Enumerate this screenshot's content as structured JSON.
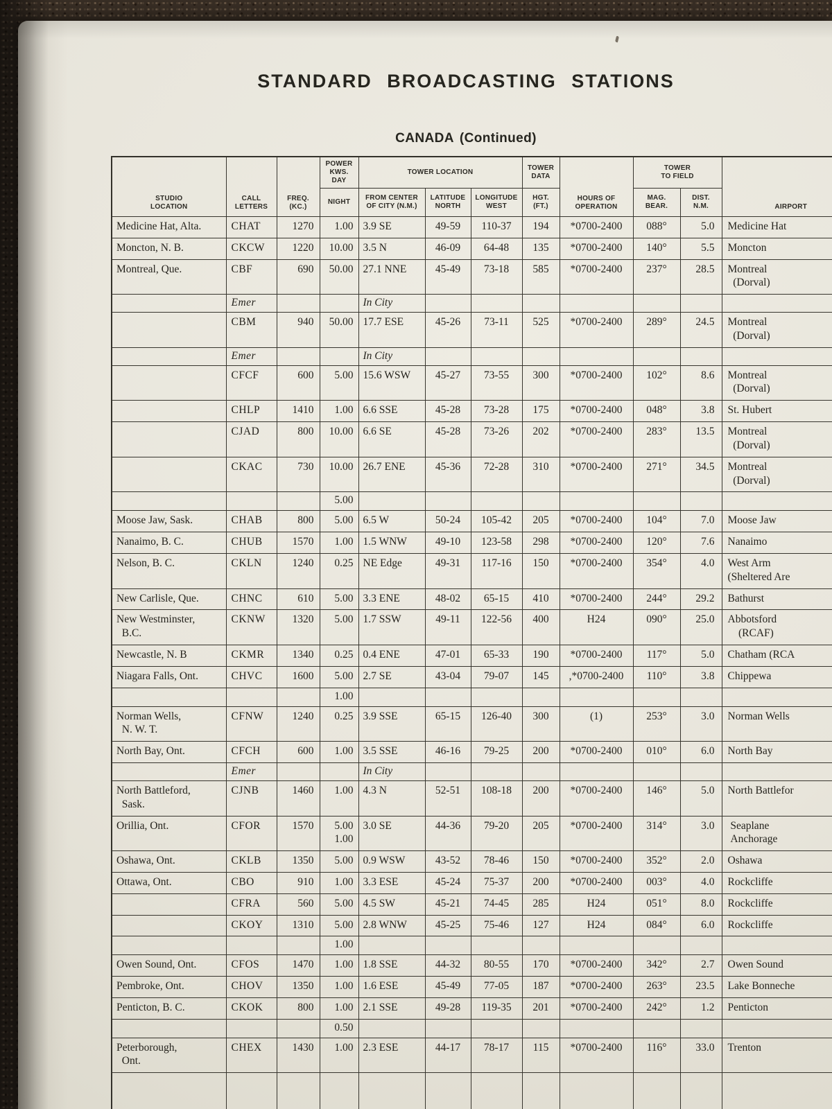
{
  "page": {
    "title": "STANDARD BROADCASTING STATIONS",
    "subtitle": "CANADA (Continued)"
  },
  "colors": {
    "paper": "#e9e6dc",
    "ink": "#25231d",
    "carpet": "#372d24"
  },
  "table": {
    "header": {
      "studio_location": "STUDIO\nLOCATION",
      "call_letters": "CALL\nLETTERS",
      "freq": "FREQ.\n(KC.)",
      "power_day": "POWER\nKWS.\nDAY",
      "night": "NIGHT",
      "tower_location": "TOWER LOCATION",
      "from_center": "FROM CENTER\nOF CITY (N.M.)",
      "latitude": "LATITUDE\nNORTH",
      "longitude": "LONGITUDE\nWEST",
      "tower_data": "TOWER\nDATA",
      "hgt": "HGT.\n(FT.)",
      "hours": "HOURS OF\nOPERATION",
      "tower_to_field": "TOWER\nTO FIELD",
      "mag_bear": "MAG.\nBEAR.",
      "dist": "DIST.\nN.M.",
      "airport": "AIRPORT"
    },
    "rows": [
      [
        "Medicine Hat, Alta.",
        "CHAT",
        "1270",
        "1.00",
        "3.9 SE",
        "49-59",
        "110-37",
        "194",
        "*0700-2400",
        "088°",
        "5.0",
        "Medicine Hat"
      ],
      [
        "Moncton, N. B.",
        "CKCW",
        "1220",
        "10.00",
        "3.5 N",
        "46-09",
        "64-48",
        "135",
        "*0700-2400",
        "140°",
        "5.5",
        "Moncton"
      ],
      [
        "Montreal, Que.",
        "CBF",
        "690",
        "50.00",
        "27.1 NNE",
        "45-49",
        "73-18",
        "585",
        "*0700-2400",
        "237°",
        "28.5",
        "Montreal\n  (Dorval)"
      ],
      [
        "",
        "Emer",
        "",
        "",
        "In City",
        "",
        "",
        "",
        "",
        "",
        "",
        ""
      ],
      [
        "",
        "CBM",
        "940",
        "50.00",
        "17.7 ESE",
        "45-26",
        "73-11",
        "525",
        "*0700-2400",
        "289°",
        "24.5",
        "Montreal\n  (Dorval)"
      ],
      [
        "",
        "Emer",
        "",
        "",
        "In City",
        "",
        "",
        "",
        "",
        "",
        "",
        ""
      ],
      [
        "",
        "CFCF",
        "600",
        "5.00",
        "15.6 WSW",
        "45-27",
        "73-55",
        "300",
        "*0700-2400",
        "102°",
        "8.6",
        "Montreal\n  (Dorval)"
      ],
      [
        "",
        "CHLP",
        "1410",
        "1.00",
        "6.6 SSE",
        "45-28",
        "73-28",
        "175",
        "*0700-2400",
        "048°",
        "3.8",
        "St. Hubert"
      ],
      [
        "",
        "CJAD",
        "800",
        "10.00",
        "6.6 SE",
        "45-28",
        "73-26",
        "202",
        "*0700-2400",
        "283°",
        "13.5",
        "Montreal\n  (Dorval)"
      ],
      [
        "",
        "CKAC",
        "730",
        "10.00",
        "26.7 ENE",
        "45-36",
        "72-28",
        "310",
        "*0700-2400",
        "271°",
        "34.5",
        "Montreal\n  (Dorval)"
      ],
      [
        "",
        "",
        "",
        "5.00",
        "",
        "",
        "",
        "",
        "",
        "",
        "",
        ""
      ],
      [
        "Moose Jaw, Sask.",
        "CHAB",
        "800",
        "5.00",
        "6.5 W",
        "50-24",
        "105-42",
        "205",
        "*0700-2400",
        "104°",
        "7.0",
        "Moose Jaw"
      ],
      [
        "Nanaimo, B. C.",
        "CHUB",
        "1570",
        "1.00",
        "1.5 WNW",
        "49-10",
        "123-58",
        "298",
        "*0700-2400",
        "120°",
        "7.6",
        "Nanaimo"
      ],
      [
        "Nelson, B. C.",
        "CKLN",
        "1240",
        "0.25",
        "NE Edge",
        "49-31",
        "117-16",
        "150",
        "*0700-2400",
        "354°",
        "4.0",
        "West Arm\n(Sheltered Are"
      ],
      [
        "New Carlisle, Que.",
        "CHNC",
        "610",
        "5.00",
        "3.3 ENE",
        "48-02",
        "65-15",
        "410",
        "*0700-2400",
        "244°",
        "29.2",
        "Bathurst"
      ],
      [
        "New Westminster,\n  B.C.",
        "CKNW",
        "1320",
        "5.00",
        "1.7 SSW",
        "49-11",
        "122-56",
        "400",
        "H24",
        "090°",
        "25.0",
        "Abbotsford\n    (RCAF)"
      ],
      [
        "Newcastle, N. B",
        "CKMR",
        "1340",
        "0.25",
        "0.4 ENE",
        "47-01",
        "65-33",
        "190",
        "*0700-2400",
        "117°",
        "5.0",
        "Chatham (RCA"
      ],
      [
        "Niagara Falls, Ont.",
        "CHVC",
        "1600",
        "5.00",
        "2.7 SE",
        "43-04",
        "79-07",
        "145",
        ",*0700-2400",
        "110°",
        "3.8",
        "Chippewa"
      ],
      [
        "",
        "",
        "",
        "1.00",
        "",
        "",
        "",
        "",
        "",
        "",
        "",
        ""
      ],
      [
        "Norman Wells,\n  N. W. T.",
        "CFNW",
        "1240",
        "0.25",
        "3.9 SSE",
        "65-15",
        "126-40",
        "300",
        "(1)",
        "253°",
        "3.0",
        "Norman Wells"
      ],
      [
        "North Bay, Ont.",
        "CFCH",
        "600",
        "1.00",
        "3.5 SSE",
        "46-16",
        "79-25",
        "200",
        "*0700-2400",
        "010°",
        "6.0",
        "North Bay"
      ],
      [
        "",
        "Emer",
        "",
        "",
        "In City",
        "",
        "",
        "",
        "",
        "",
        "",
        ""
      ],
      [
        "North Battleford,\n  Sask.",
        "CJNB",
        "1460",
        "1.00",
        "4.3 N",
        "52-51",
        "108-18",
        "200",
        "*0700-2400",
        "146°",
        "5.0",
        "North Battlefor"
      ],
      [
        "Orillia, Ont.",
        "CFOR",
        "1570",
        "5.00\n1.00",
        "3.0 SE",
        "44-36",
        "79-20",
        "205",
        "*0700-2400",
        "314°",
        "3.0",
        " Seaplane\n Anchorage"
      ],
      [
        "Oshawa, Ont.",
        "CKLB",
        "1350",
        "5.00",
        "0.9 WSW",
        "43-52",
        "78-46",
        "150",
        "*0700-2400",
        "352°",
        "2.0",
        "Oshawa"
      ],
      [
        "Ottawa, Ont.",
        "CBO",
        "910",
        "1.00",
        "3.3 ESE",
        "45-24",
        "75-37",
        "200",
        "*0700-2400",
        "003°",
        "4.0",
        "Rockcliffe"
      ],
      [
        "",
        "CFRA",
        "560",
        "5.00",
        "4.5 SW",
        "45-21",
        "74-45",
        "285",
        "H24",
        "051°",
        "8.0",
        "Rockcliffe"
      ],
      [
        "",
        "CKOY",
        "1310",
        "5.00",
        "2.8 WNW",
        "45-25",
        "75-46",
        "127",
        "H24",
        "084°",
        "6.0",
        "Rockcliffe"
      ],
      [
        "",
        "",
        "",
        "1.00",
        "",
        "",
        "",
        "",
        "",
        "",
        "",
        ""
      ],
      [
        "Owen Sound, Ont.",
        "CFOS",
        "1470",
        "1.00",
        "1.8 SSE",
        "44-32",
        "80-55",
        "170",
        "*0700-2400",
        "342°",
        "2.7",
        "Owen Sound"
      ],
      [
        "Pembroke, Ont.",
        "CHOV",
        "1350",
        "1.00",
        "1.6 ESE",
        "45-49",
        "77-05",
        "187",
        "*0700-2400",
        "263°",
        "23.5",
        "Lake Bonneche"
      ],
      [
        "Penticton, B. C.",
        "CKOK",
        "800",
        "1.00",
        "2.1 SSE",
        "49-28",
        "119-35",
        "201",
        "*0700-2400",
        "242°",
        "1.2",
        "Penticton"
      ],
      [
        "",
        "",
        "",
        "0.50",
        "",
        "",
        "",
        "",
        "",
        "",
        "",
        ""
      ],
      [
        "Peterborough,\n  Ont.",
        "CHEX",
        "1430",
        "1.00",
        "2.3 ESE",
        "44-17",
        "78-17",
        "115",
        "*0700-2400",
        "116°",
        "33.0",
        "Trenton"
      ],
      [
        "",
        "",
        "",
        "",
        "",
        "",
        "",
        "",
        "",
        "",
        "",
        ""
      ]
    ]
  }
}
